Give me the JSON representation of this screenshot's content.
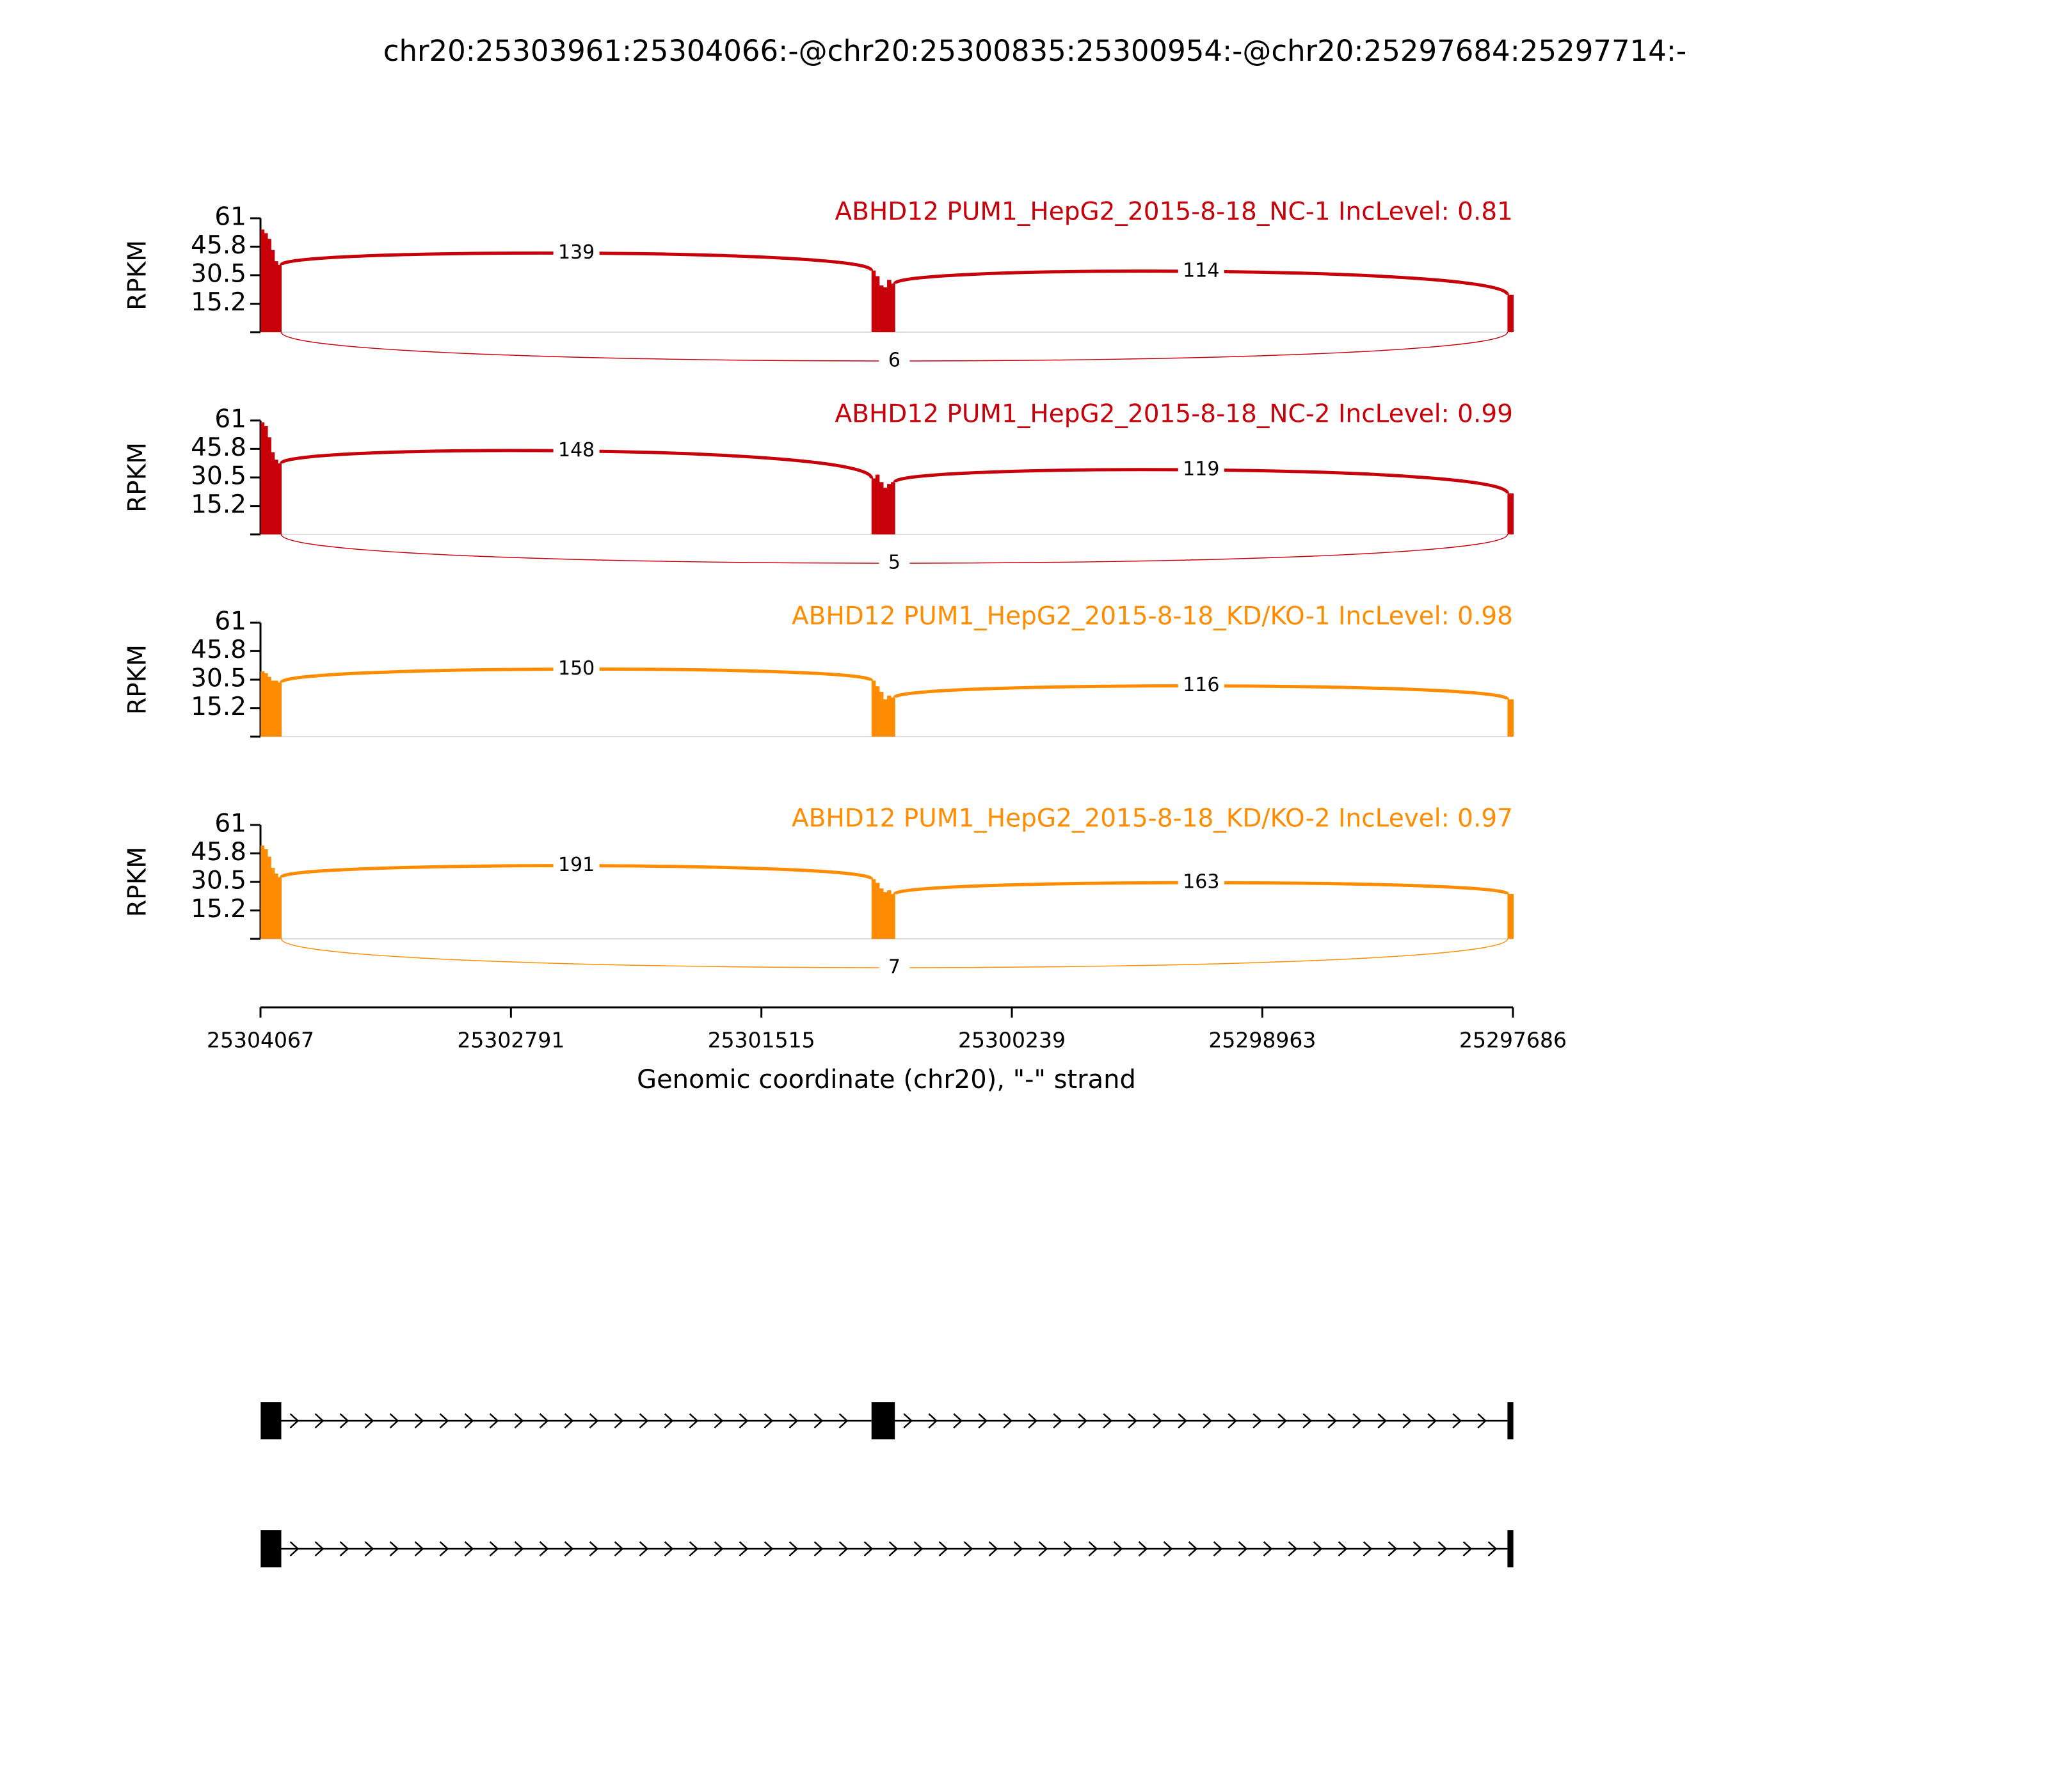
{
  "chart_data": {
    "type": "sashimi",
    "title": "chr20:25303961:25304066:-@chr20:25300835:25300954:-@chr20:25297684:25297714:-",
    "xlabel": "Genomic coordinate (chr20), \"-\" strand",
    "ylabel": "RPKM",
    "xlim": [
      25304067,
      25297686
    ],
    "xticks": [
      25304067,
      25302791,
      25301515,
      25300239,
      25298963,
      25297686
    ],
    "ylim": [
      0,
      61
    ],
    "yticks": [
      15.2,
      30.5,
      45.8,
      61
    ],
    "exons": [
      [
        25304066,
        25303961
      ],
      [
        25300954,
        25300835
      ],
      [
        25297714,
        25297684
      ]
    ],
    "panels": [
      {
        "name": "ABHD12 PUM1_HepG2_2015-8-18_NC-1 IncLevel: 0.81",
        "color": "#c8000a",
        "coverage": [
          [
            55,
            53,
            50,
            44,
            38,
            36
          ],
          [
            33,
            30,
            25,
            24,
            28,
            26
          ],
          [
            20
          ]
        ],
        "inclusion_counts": [
          139,
          114
        ],
        "skipping_count": 6
      },
      {
        "name": "ABHD12 PUM1_HepG2_2015-8-18_NC-2 IncLevel: 0.99",
        "color": "#c8000a",
        "coverage": [
          [
            60,
            58,
            52,
            44,
            40,
            38
          ],
          [
            30,
            32,
            28,
            25,
            27,
            28
          ],
          [
            22
          ]
        ],
        "inclusion_counts": [
          148,
          119
        ],
        "skipping_count": 5
      },
      {
        "name": "ABHD12 PUM1_HepG2_2015-8-18_KD/KO-1 IncLevel: 0.98",
        "color": "#ff8c00",
        "coverage": [
          [
            35,
            34,
            32,
            30,
            30,
            29
          ],
          [
            30,
            27,
            24,
            20,
            22,
            21
          ],
          [
            20
          ]
        ],
        "inclusion_counts": [
          150,
          116
        ]
      },
      {
        "name": "ABHD12 PUM1_HepG2_2015-8-18_KD/KO-2 IncLevel: 0.97",
        "color": "#ff8c00",
        "coverage": [
          [
            50,
            48,
            44,
            38,
            35,
            33
          ],
          [
            32,
            30,
            27,
            25,
            26,
            24
          ],
          [
            24
          ]
        ],
        "inclusion_counts": [
          191,
          163
        ],
        "skipping_count": 7
      }
    ],
    "transcripts": [
      [
        [
          25304066,
          25303961
        ],
        [
          25300954,
          25300835
        ],
        [
          25297714,
          25297684
        ]
      ],
      [
        [
          25304066,
          25303961
        ],
        [
          25297714,
          25297684
        ]
      ]
    ]
  }
}
